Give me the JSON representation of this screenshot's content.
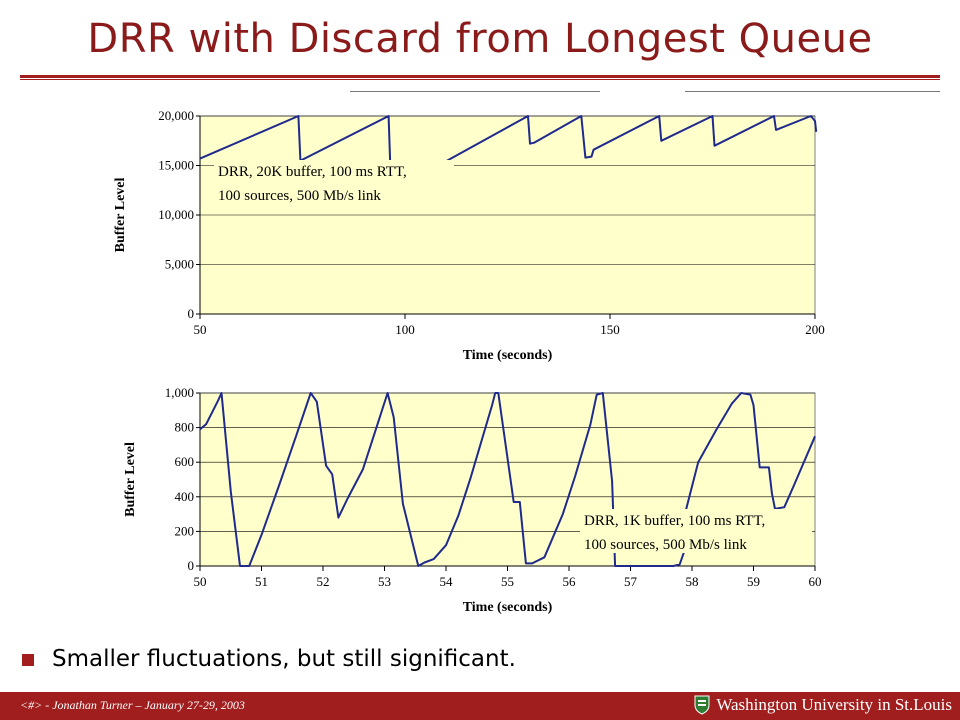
{
  "slide": {
    "title": "DRR with Discard from Longest Queue",
    "bullet": "Smaller fluctuations, but still significant.",
    "footer": "<#> - Jonathan Turner – January 27-29, 2003",
    "university": "Washington University in St.Louis"
  },
  "colors": {
    "accent": "#a01e1e",
    "plot_bg": "#ffffcc",
    "series": "#1f2a8c",
    "title": "#8b1a1a"
  },
  "chart_data": [
    {
      "type": "line",
      "xlabel": "Time (seconds)",
      "ylabel": "Buffer Level",
      "xlim": [
        50,
        200
      ],
      "ylim": [
        0,
        20000
      ],
      "xticks": [
        50,
        100,
        150,
        200
      ],
      "xtick_labels": [
        "50",
        "100",
        "150",
        "200"
      ],
      "yticks": [
        0,
        5000,
        10000,
        15000,
        20000
      ],
      "ytick_labels": [
        "0",
        "5,000",
        "10,000",
        "15,000",
        "20,000"
      ],
      "grid": "horizontal",
      "annotation": [
        "DRR, 20K buffer,  100 ms RTT,",
        "100 sources, 500 Mb/s link"
      ],
      "series": [
        {
          "x": [
            50,
            74,
            74.5,
            75,
            96,
            96.5,
            97.5,
            98.5,
            130,
            130.5,
            131.5,
            143,
            144,
            145.5,
            146,
            162,
            162.5,
            175,
            175.5,
            176,
            190,
            190.5,
            199,
            200,
            200.3
          ],
          "y": [
            15700,
            20000,
            15500,
            15600,
            20000,
            14000,
            12500,
            12800,
            20000,
            17200,
            17300,
            20000,
            15800,
            15900,
            16600,
            20000,
            17500,
            20000,
            17000,
            17100,
            20000,
            18600,
            20000,
            19500,
            18400
          ]
        }
      ]
    },
    {
      "type": "line",
      "xlabel": "Time (seconds)",
      "ylabel": "Buffer Level",
      "xlim": [
        50,
        60
      ],
      "ylim": [
        0,
        1000
      ],
      "xticks": [
        50,
        51,
        52,
        53,
        54,
        55,
        56,
        57,
        58,
        59,
        60
      ],
      "xtick_labels": [
        "50",
        "51",
        "52",
        "53",
        "54",
        "55",
        "56",
        "57",
        "58",
        "59",
        "60"
      ],
      "yticks": [
        0,
        200,
        400,
        600,
        800,
        1000
      ],
      "ytick_labels": [
        "0",
        "200",
        "400",
        "600",
        "800",
        "1,000"
      ],
      "grid": "horizontal",
      "annotation": [
        "DRR, 1K buffer, 100 ms RTT,",
        "100 sources, 500 Mb/s link"
      ],
      "series": [
        {
          "x": [
            50,
            50.1,
            50.3,
            50.35,
            50.5,
            50.65,
            50.7,
            50.8,
            51,
            51.3,
            51.6,
            51.8,
            51.9,
            52.05,
            52.15,
            52.25,
            52.4,
            52.65,
            53.05,
            53.15,
            53.3,
            53.55,
            53.65,
            53.8,
            54.0,
            54.2,
            54.4,
            54.75,
            54.8,
            54.85,
            55.1,
            55.2,
            55.3,
            55.4,
            55.6,
            55.9,
            56.1,
            56.35,
            56.45,
            56.55,
            56.7,
            56.75,
            56.9,
            57.3,
            57.7,
            57.8,
            57.87
          ],
          "y": [
            790,
            820,
            960,
            1000,
            430,
            0,
            0,
            0,
            180,
            480,
            790,
            1000,
            950,
            580,
            530,
            280,
            390,
            560,
            1000,
            860,
            360,
            0,
            20,
            40,
            120,
            290,
            510,
            930,
            1000,
            1000,
            370,
            370,
            15,
            15,
            50,
            300,
            520,
            820,
            990,
            1000,
            490,
            0,
            0,
            0,
            0,
            10,
            80
          ]
        },
        {
          "x": [
            57.9,
            58.1,
            58.4,
            58.65,
            58.8,
            58.95,
            59.0,
            59.1,
            59.15,
            59.25,
            59.3,
            59.35,
            59.5,
            59.65,
            60
          ],
          "y": [
            320,
            600,
            790,
            940,
            1000,
            990,
            930,
            570,
            570,
            570,
            420,
            330,
            340,
            460,
            750
          ]
        }
      ]
    }
  ]
}
